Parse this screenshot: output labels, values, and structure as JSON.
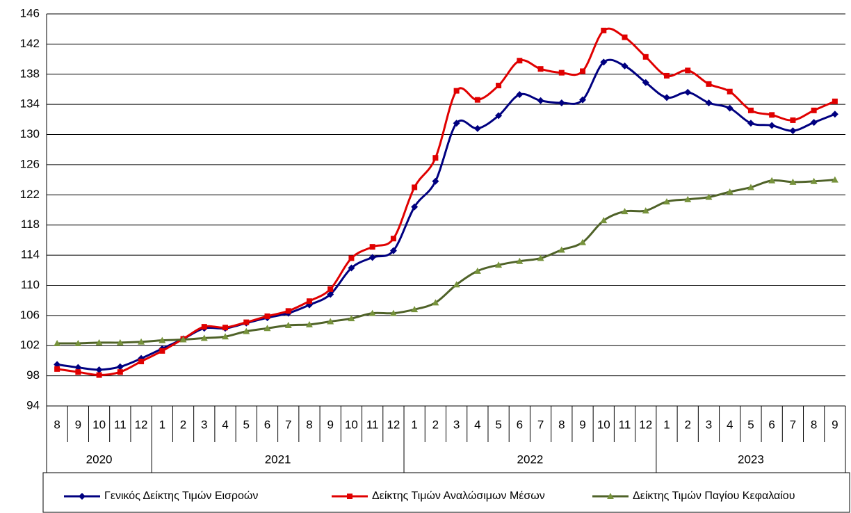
{
  "chart_data": {
    "type": "line",
    "groups": [
      {
        "label": "2020",
        "categories": [
          "8",
          "9",
          "10",
          "11",
          "12"
        ]
      },
      {
        "label": "2021",
        "categories": [
          "1",
          "2",
          "3",
          "4",
          "5",
          "6",
          "7",
          "8",
          "9",
          "10",
          "11",
          "12"
        ]
      },
      {
        "label": "2022",
        "categories": [
          "1",
          "2",
          "3",
          "4",
          "5",
          "6",
          "7",
          "8",
          "9",
          "10",
          "11",
          "12"
        ]
      },
      {
        "label": "2023",
        "categories": [
          "1",
          "2",
          "3",
          "4",
          "5",
          "6",
          "7",
          "8",
          "9"
        ]
      }
    ],
    "ylim": [
      94,
      146
    ],
    "yticks": [
      94,
      98,
      102,
      106,
      110,
      114,
      118,
      122,
      126,
      130,
      134,
      138,
      142,
      146
    ],
    "grid": true,
    "legend": "bottom",
    "series": [
      {
        "name": "Γενικός Δείκτης Τιμών Εισροών",
        "color": "#000080",
        "marker": "diamond",
        "values": [
          99.5,
          99.1,
          98.8,
          99.2,
          100.3,
          101.6,
          102.9,
          104.3,
          104.3,
          105.0,
          105.7,
          106.3,
          107.4,
          108.8,
          112.3,
          113.7,
          114.6,
          120.4,
          123.8,
          131.5,
          130.8,
          132.5,
          135.3,
          134.5,
          134.2,
          134.6,
          139.6,
          139.1,
          136.9,
          134.9,
          135.6,
          134.2,
          133.5,
          131.5,
          131.2,
          130.5,
          131.6,
          132.7
        ]
      },
      {
        "name": "Δείκτης Τιμών Αναλώσιμων Μέσων",
        "color": "#e00000",
        "marker": "square",
        "values": [
          98.9,
          98.5,
          98.1,
          98.5,
          99.9,
          101.3,
          102.9,
          104.5,
          104.4,
          105.1,
          105.9,
          106.6,
          107.9,
          109.5,
          113.6,
          115.1,
          116.2,
          123.0,
          126.9,
          135.8,
          134.6,
          136.5,
          139.8,
          138.7,
          138.2,
          138.4,
          143.8,
          142.9,
          140.3,
          137.8,
          138.5,
          136.7,
          135.7,
          133.2,
          132.6,
          131.9,
          133.2,
          134.4
        ]
      },
      {
        "name": "Δείκτης Τιμών Παγίου Κεφαλαίου",
        "color": "#4f6228",
        "marker": "triangle",
        "values": [
          102.3,
          102.3,
          102.4,
          102.4,
          102.5,
          102.7,
          102.8,
          103.0,
          103.2,
          103.9,
          104.3,
          104.7,
          104.8,
          105.2,
          105.6,
          106.3,
          106.3,
          106.8,
          107.7,
          110.1,
          111.9,
          112.7,
          113.2,
          113.6,
          114.7,
          115.7,
          118.6,
          119.8,
          119.9,
          121.1,
          121.4,
          121.7,
          122.4,
          123.0,
          123.9,
          123.7,
          123.8,
          124.0
        ]
      }
    ]
  }
}
